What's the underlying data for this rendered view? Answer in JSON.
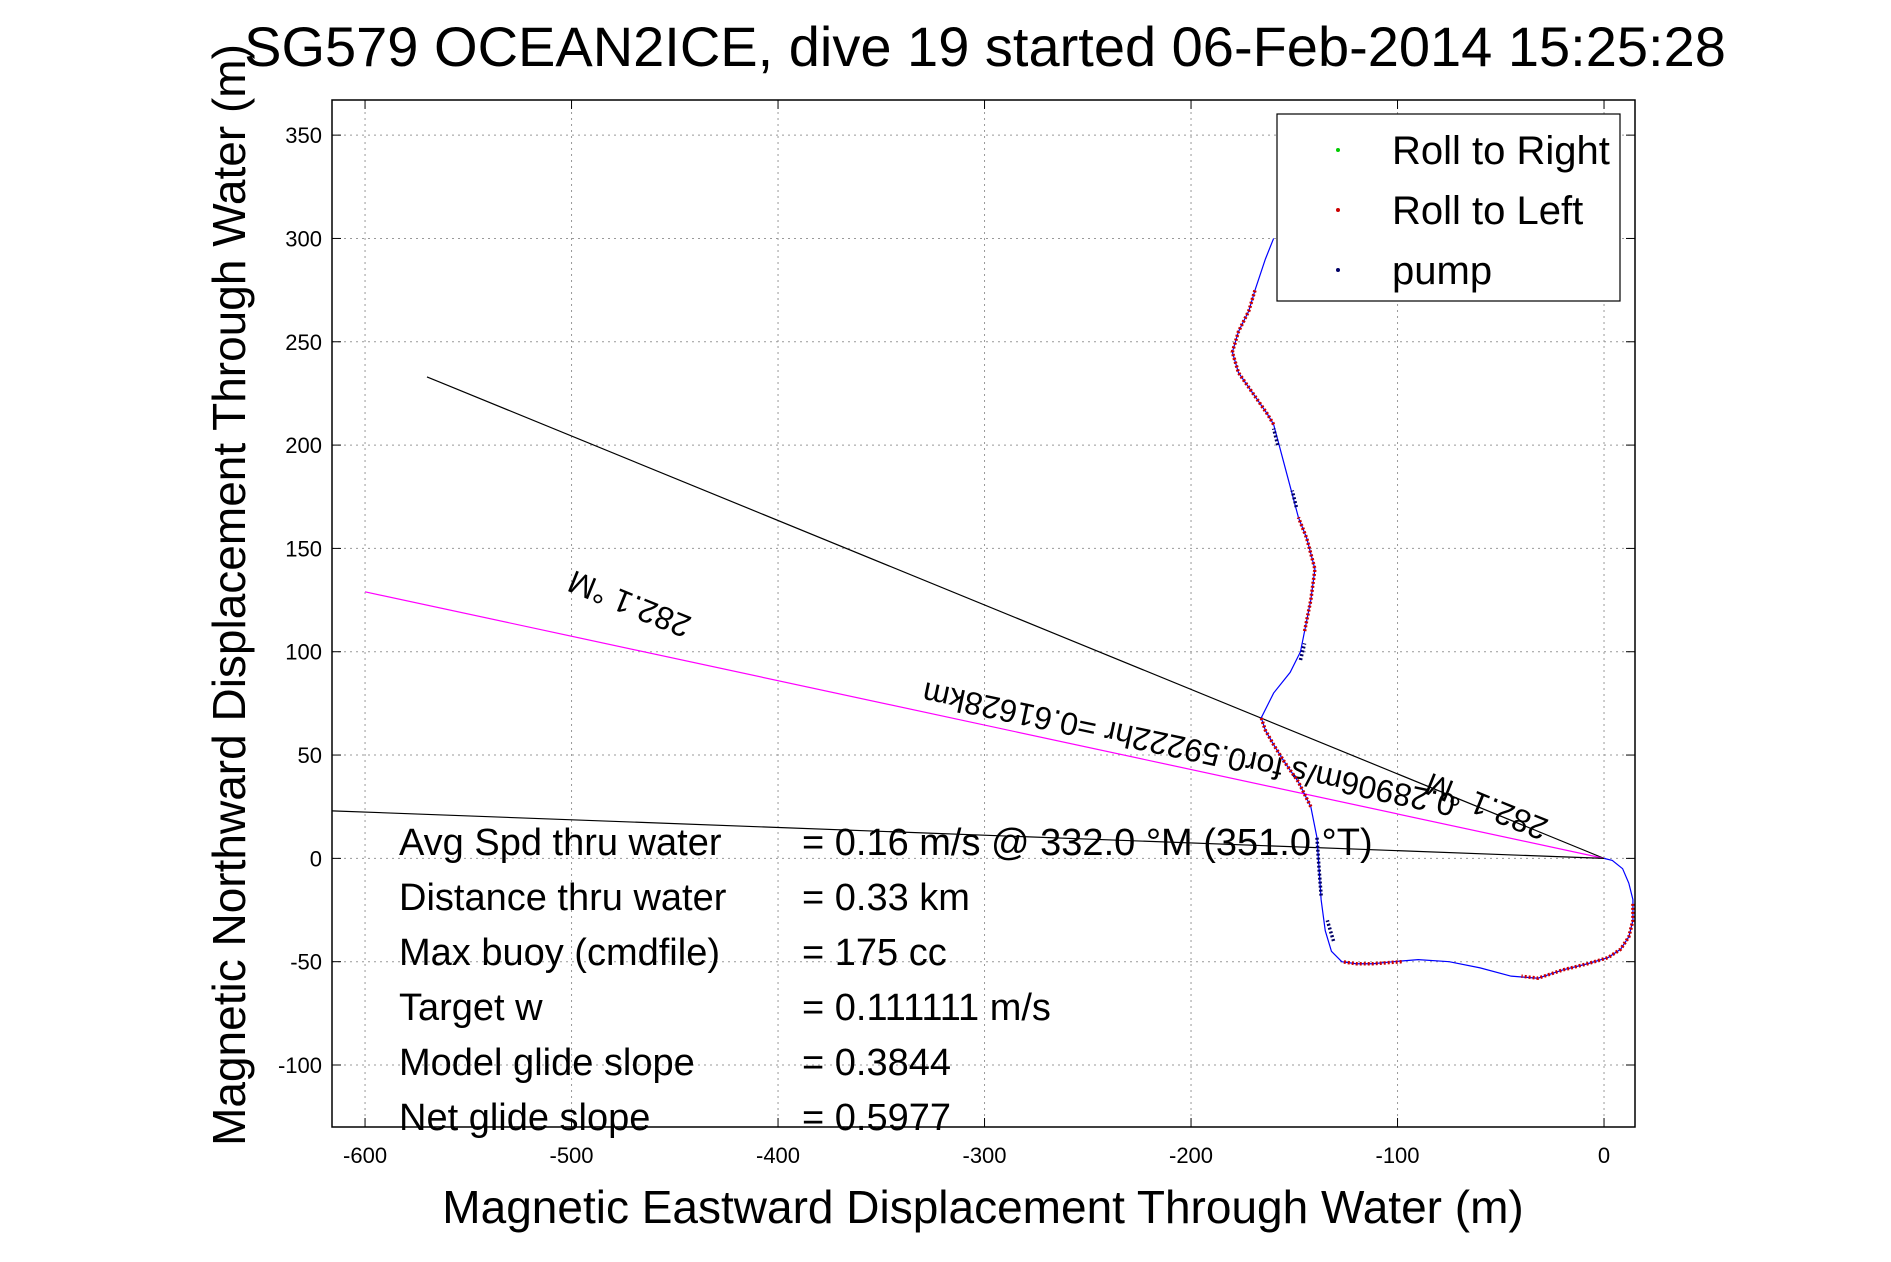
{
  "chart_data": {
    "type": "line",
    "title": "SG579 OCEAN2ICE, dive 19 started 06-Feb-2014 15:25:28",
    "xlabel": "Magnetic Eastward Displacement Through Water (m)",
    "ylabel": "Magnetic Northward Displacement Through Water (m)",
    "xlim": [
      -616,
      15
    ],
    "ylim": [
      -130,
      367
    ],
    "xticks": [
      -600,
      -500,
      -400,
      -300,
      -200,
      -100,
      0
    ],
    "yticks": [
      -100,
      -50,
      0,
      50,
      100,
      150,
      200,
      250,
      300,
      350
    ],
    "grid": true,
    "legend_position": "top-right",
    "legend": [
      {
        "name": "Roll to Right",
        "color": "#00cc00"
      },
      {
        "name": "Roll to Left",
        "color": "#cc0000"
      },
      {
        "name": "pump",
        "color": "#000066"
      }
    ],
    "track": {
      "color": "#0000ff",
      "points": [
        [
          0,
          0
        ],
        [
          4,
          -1
        ],
        [
          9,
          -5
        ],
        [
          12,
          -12
        ],
        [
          14,
          -20
        ],
        [
          14,
          -30
        ],
        [
          12,
          -38
        ],
        [
          8,
          -44
        ],
        [
          2,
          -48
        ],
        [
          -8,
          -51
        ],
        [
          -20,
          -54
        ],
        [
          -32,
          -58
        ],
        [
          -45,
          -57
        ],
        [
          -60,
          -53
        ],
        [
          -75,
          -50
        ],
        [
          -90,
          -49
        ],
        [
          -102,
          -50
        ],
        [
          -112,
          -51
        ],
        [
          -120,
          -51
        ],
        [
          -127,
          -50
        ],
        [
          -132,
          -45
        ],
        [
          -135,
          -35
        ],
        [
          -137,
          -20
        ],
        [
          -138,
          -5
        ],
        [
          -139,
          10
        ],
        [
          -142,
          25
        ],
        [
          -148,
          37
        ],
        [
          -155,
          47
        ],
        [
          -160,
          55
        ],
        [
          -164,
          62
        ],
        [
          -166,
          68
        ],
        [
          -160,
          80
        ],
        [
          -152,
          90
        ],
        [
          -147,
          100
        ],
        [
          -145,
          110
        ],
        [
          -142,
          125
        ],
        [
          -140,
          140
        ],
        [
          -144,
          155
        ],
        [
          -148,
          165
        ],
        [
          -152,
          180
        ],
        [
          -156,
          195
        ],
        [
          -160,
          210
        ],
        [
          -163,
          215
        ],
        [
          -170,
          225
        ],
        [
          -177,
          235
        ],
        [
          -180,
          245
        ],
        [
          -177,
          255
        ],
        [
          -172,
          265
        ],
        [
          -169,
          275
        ],
        [
          -164,
          290
        ],
        [
          -160,
          300
        ]
      ]
    },
    "left_roll_segments": [
      [
        [
          14,
          -22
        ],
        [
          14,
          -30
        ],
        [
          12,
          -38
        ],
        [
          8,
          -44
        ],
        [
          2,
          -48
        ],
        [
          -8,
          -51
        ],
        [
          -20,
          -54
        ],
        [
          -32,
          -58
        ],
        [
          -40,
          -57
        ]
      ],
      [
        [
          -98,
          -50
        ],
        [
          -112,
          -51
        ],
        [
          -120,
          -51
        ],
        [
          -127,
          -50
        ]
      ],
      [
        [
          -142,
          25
        ],
        [
          -148,
          37
        ],
        [
          -155,
          47
        ],
        [
          -160,
          55
        ],
        [
          -164,
          62
        ],
        [
          -166,
          68
        ]
      ],
      [
        [
          -145,
          110
        ],
        [
          -142,
          125
        ],
        [
          -140,
          140
        ],
        [
          -144,
          155
        ],
        [
          -148,
          165
        ]
      ],
      [
        [
          -160,
          210
        ],
        [
          -163,
          215
        ],
        [
          -170,
          225
        ],
        [
          -177,
          235
        ],
        [
          -180,
          245
        ],
        [
          -177,
          255
        ],
        [
          -172,
          265
        ],
        [
          -169,
          275
        ]
      ]
    ],
    "pump_segments": [
      [
        [
          -137,
          -18
        ],
        [
          -138,
          -5
        ],
        [
          -139,
          10
        ]
      ],
      [
        [
          -131,
          -40
        ],
        [
          -134,
          -30
        ]
      ],
      [
        [
          -147,
          96
        ],
        [
          -145,
          104
        ]
      ],
      [
        [
          -149,
          170
        ],
        [
          -151,
          178
        ]
      ],
      [
        [
          -158,
          200
        ],
        [
          -160,
          208
        ]
      ]
    ],
    "reference_lines": [
      {
        "color": "#000000",
        "from": [
          -570,
          233
        ],
        "to": [
          0,
          0
        ]
      },
      {
        "color": "#ff00ff",
        "from": [
          -600,
          129
        ],
        "to": [
          0,
          0
        ]
      },
      {
        "color": "#000000",
        "from": [
          -616,
          23
        ],
        "to": [
          0,
          0
        ]
      }
    ],
    "annotations": [
      {
        "text": "282.1 °M",
        "x": -470,
        "y": 128,
        "rotation": 202
      },
      {
        "text": "0.28906m/s for0.59222hr =0.61628km",
        "x": -200,
        "y": 58,
        "rotation": 192
      },
      {
        "text": "282.1 °M",
        "x": -55,
        "y": 30,
        "rotation": 202
      }
    ],
    "stats": [
      {
        "label": "Avg Spd thru water",
        "value": "=  0.16 m/s @ 332.0 °M (351.0 °T)"
      },
      {
        "label": "Distance thru water",
        "value": "=  0.33 km"
      },
      {
        "label": "Max buoy (cmdfile)",
        "value": "= 175 cc"
      },
      {
        "label": "Target w",
        "value": "= 0.111111 m/s"
      },
      {
        "label": "Model glide slope",
        "value": "= 0.3844"
      },
      {
        "label": "Net glide slope",
        "value": "= 0.5977"
      }
    ]
  }
}
